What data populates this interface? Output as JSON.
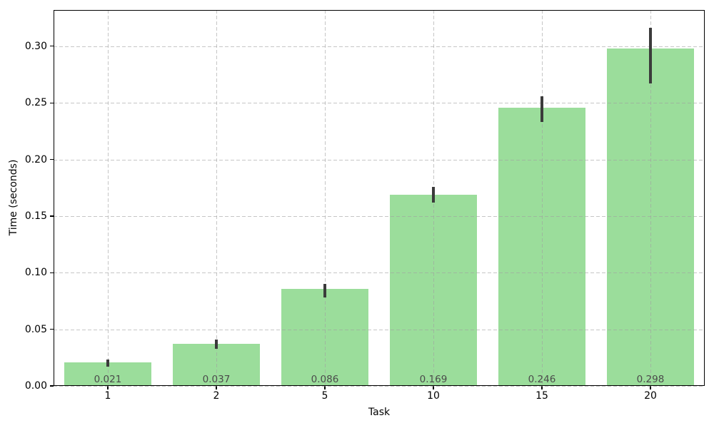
{
  "chart_data": {
    "type": "bar",
    "title": "",
    "xlabel": "Task",
    "ylabel": "Time (seconds)",
    "categories": [
      "1",
      "2",
      "5",
      "10",
      "15",
      "20"
    ],
    "values": [
      0.021,
      0.037,
      0.086,
      0.169,
      0.246,
      0.298
    ],
    "value_labels": [
      "0.021",
      "0.037",
      "0.086",
      "0.169",
      "0.246",
      "0.298"
    ],
    "error_low": [
      0.017,
      0.033,
      0.078,
      0.162,
      0.233,
      0.267
    ],
    "error_high": [
      0.023,
      0.041,
      0.09,
      0.176,
      0.256,
      0.316
    ],
    "ytick_labels": [
      "0.00",
      "0.05",
      "0.10",
      "0.15",
      "0.20",
      "0.25",
      "0.30"
    ],
    "ytick_values": [
      0.0,
      0.05,
      0.1,
      0.15,
      0.2,
      0.25,
      0.3
    ],
    "ylim": [
      0,
      0.332
    ],
    "bar_width_fraction": 0.8,
    "grid": "dashed, both axes, drawn over bars",
    "legend_position": "none",
    "colors": {
      "bar_fill": "#9bdd9b",
      "error_bar": "#3b3b3b",
      "value_label_text": "#4a4a4a",
      "grid_line": "#c9c9c9",
      "axis_spine": "#000000",
      "background": "#ffffff"
    }
  }
}
